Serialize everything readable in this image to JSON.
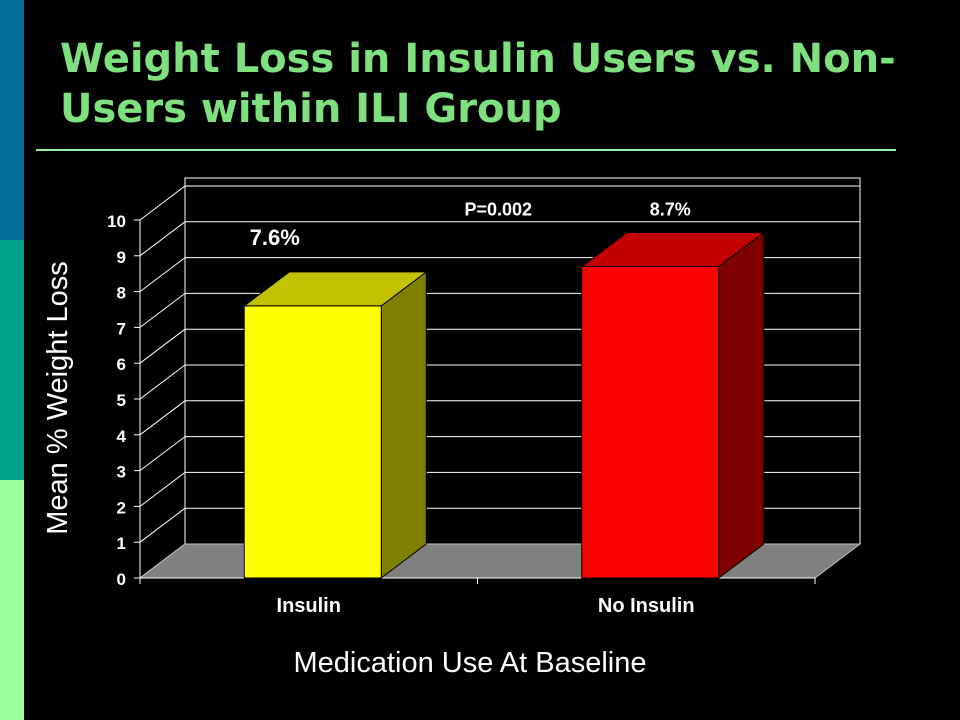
{
  "slide": {
    "title": "Weight Loss in Insulin Users vs. Non-Users within ILI Group"
  },
  "colors": {
    "background": "#000000",
    "title": "#7fe07f",
    "accent_stripes": [
      "#006f9a",
      "#00a08a",
      "#99ff99"
    ]
  },
  "chart_data": {
    "type": "bar",
    "style": "3d",
    "title": "",
    "xlabel": "Medication Use At Baseline",
    "ylabel": "Mean % Weight Loss",
    "ylim": [
      0,
      10
    ],
    "yticks": [
      0,
      1,
      2,
      3,
      4,
      5,
      6,
      7,
      8,
      9,
      10
    ],
    "grid": true,
    "categories": [
      "Insulin",
      "No Insulin"
    ],
    "values": [
      7.6,
      8.7
    ],
    "data_labels": [
      "7.6%",
      "8.7%"
    ],
    "bar_colors": [
      "#ffff00",
      "#ff0000"
    ],
    "annotations": [
      {
        "text": "P=0.002"
      }
    ]
  }
}
